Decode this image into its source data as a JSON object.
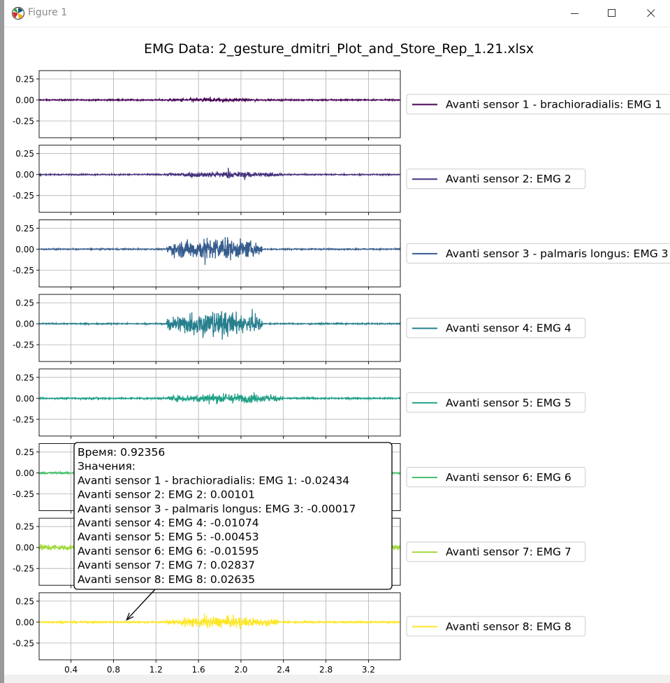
{
  "window": {
    "title": "Figure 1",
    "app_icon": "matplotlib-logo-icon",
    "controls": [
      "minimize-icon",
      "maximize-icon",
      "close-icon"
    ]
  },
  "chart_data": {
    "type": "line",
    "title": "EMG Data: 2_gesture_dmitri_Plot_and_Store_Rep_1.21.xlsx",
    "subplots": 8,
    "shared_x": true,
    "xlim": [
      0.1,
      3.5
    ],
    "x_ticks": [
      "0.4",
      "0.8",
      "1.2",
      "1.6",
      "2.0",
      "2.4",
      "2.8",
      "3.2"
    ],
    "ylim": [
      -0.45,
      0.35
    ],
    "y_ticks": [
      "0.25",
      "0.00",
      "-0.25"
    ],
    "grid": true,
    "legend_placement": "right of each subplot",
    "series": [
      {
        "name": "Avanti sensor 1 - brachioradialis: EMG 1",
        "color": "#440154",
        "baseline_noise": 0.006,
        "burst": {
          "start": 1.3,
          "end": 2.15,
          "amplitude": 0.05
        }
      },
      {
        "name": "Avanti sensor 2: EMG 2",
        "color": "#46327e",
        "baseline_noise": 0.006,
        "burst": {
          "start": 1.3,
          "end": 2.4,
          "amplitude": 0.08
        }
      },
      {
        "name": "Avanti sensor 3 - palmaris longus: EMG 3",
        "color": "#365c8d",
        "baseline_noise": 0.006,
        "burst": {
          "start": 1.3,
          "end": 2.2,
          "amplitude": 0.3
        }
      },
      {
        "name": "Avanti sensor 4: EMG 4",
        "color": "#277f8e",
        "baseline_noise": 0.006,
        "burst": {
          "start": 1.3,
          "end": 2.2,
          "amplitude": 0.34
        }
      },
      {
        "name": "Avanti sensor 5: EMG 5",
        "color": "#1fa187",
        "baseline_noise": 0.008,
        "burst": {
          "start": 1.3,
          "end": 2.4,
          "amplitude": 0.13
        }
      },
      {
        "name": "Avanti sensor 6: EMG 6",
        "color": "#4ac16d",
        "baseline_noise": 0.01,
        "burst": null
      },
      {
        "name": "Avanti sensor 7: EMG 7",
        "color": "#a0da39",
        "baseline_noise": 0.03,
        "burst": null
      },
      {
        "name": "Avanti sensor 8: EMG 8",
        "color": "#fde725",
        "baseline_noise": 0.008,
        "burst": {
          "start": 1.3,
          "end": 2.35,
          "amplitude": 0.15
        }
      }
    ],
    "annotation": {
      "x": 0.92356,
      "y": 0.02635,
      "subplot": 8,
      "lines": [
        "Время: 0.92356",
        "Значения:",
        "Avanti sensor 1 - brachioradialis: EMG 1: -0.02434",
        "Avanti sensor 2: EMG 2: 0.00101",
        "Avanti sensor 3 - palmaris longus: EMG 3: -0.00017",
        "Avanti sensor 4: EMG 4: -0.01074",
        "Avanti sensor 5: EMG 5: -0.00453",
        "Avanti sensor 6: EMG 6: -0.01595",
        "Avanti sensor 7: EMG 7: 0.02837",
        "Avanti sensor 8: EMG 8: 0.02635"
      ]
    }
  }
}
